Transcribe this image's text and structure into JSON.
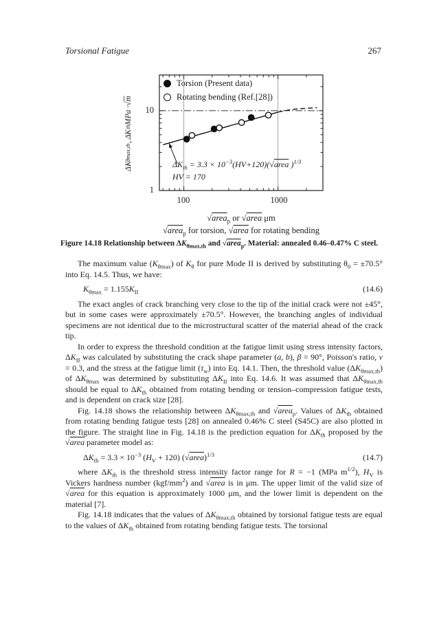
{
  "colors": {
    "text": "#1c1c1c",
    "grid": "#999999",
    "line": "#111111",
    "background": "#ffffff"
  },
  "header": {
    "running_title": "Torsional Fatigue",
    "page_number": "267"
  },
  "chart_data": {
    "type": "scatter",
    "title": "",
    "xlabel": "√area_p or √area (μm)",
    "ylabel": "ΔK_θmax,th, ΔK_th MPa·√m",
    "xscale": "log",
    "yscale": "log",
    "xlim": [
      55,
      3000
    ],
    "ylim": [
      1,
      28
    ],
    "xtick_labels": [
      "100",
      "1000"
    ],
    "ytick_labels": [
      "10",
      "1"
    ],
    "grid_x": [
      100,
      1000
    ],
    "gridline_dashdot_y": 10,
    "legend_position": "top-left",
    "series": [
      {
        "name": "Torsion  (Present data)",
        "marker": "filled-circle",
        "points": [
          [
            107,
            4.4
          ],
          [
            210,
            5.9
          ],
          [
            520,
            8.2
          ]
        ]
      },
      {
        "name": "Rotating bending  (Ref.[28])",
        "marker": "open-circle",
        "points": [
          [
            122,
            4.9
          ],
          [
            238,
            6.1
          ],
          [
            410,
            7.1
          ],
          [
            790,
            8.8
          ]
        ]
      }
    ],
    "prediction_line": {
      "label": "ΔKth = 3.3 × 10⁻³(HV+120)(√area)^1/3",
      "hv_label": "HV = 170",
      "coef": 0.0033,
      "hv": 170,
      "offset": 120,
      "power": 0.3333,
      "solid_x_range": [
        60,
        1000
      ],
      "dashed_points": [
        [
          1000,
          9.6
        ],
        [
          1300,
          10.2
        ],
        [
          1700,
          10.6
        ],
        [
          2600,
          10.9
        ]
      ]
    }
  },
  "figure": {
    "ylabel_fmt": "Δ*K*_{θmax,th}, Δ*K*_{th} MPa · √{m}",
    "annotation_line1": "Δ*K*_{th} = 3.3 × 10^{−3}(*HV*+120)(√{*area*} )^{1/3}",
    "annotation_line2": "*HV* = 170",
    "xaxis_line1": "√{*area*}_{p}  or  √{*area*}  μm",
    "xaxis_line2": "√{*area*}_{p}  for torsion, √{*area*}  for rotating bending",
    "caption": "Figure 14.18  Relationship between Δ*K*_{θmax,th} and √{*area*}_{p}. Material: annealed 0.46–0.47% C steel."
  },
  "body": {
    "paragraphs": [
      "The maximum value (*K*_{θmax}) of *K*_{θ} for pure Mode II is derived by substituting θ_{0} = ±70.5° into Eq. 14.5. Thus, we have:",
      "The exact angles of crack branching very close to the tip of the initial crack were not ±45°, but in some cases were approximately ±70.5°. However, the branching angles of individual specimens are not identical due to the microstructural scatter of the material ahead of the crack tip.",
      "In order to express the threshold condition at the fatigue limit using stress intensity factors, Δ*K*_{II} was calculated by substituting the crack shape parameter (*a*, *b*), *β* = 90°, Poisson's ratio, *ν* = 0.3, and the stress at the fatigue limit (*τ*_{w}) into Eq. 14.1. Then, the threshold value (Δ*K*_{θmax,th}) of Δ*K*_{θmax} was determined by substituting Δ*K*_{II} into Eq. 14.6. It was assumed that Δ*K*_{θmax,th} should be equal to Δ*K*_{th} obtained from rotating bending or tension–compression fatigue tests, and is dependent on crack size [28].",
      "Fig. 14.18 shows the relationship between Δ*K*_{θmax,th} and √{*area*}_{p}. Values of Δ*K*_{th} obtained from rotating bending fatigue tests [28] on annealed 0.46% C steel (S45C) are also plotted in the figure. The straight line in Fig. 14.18 is the prediction equation for Δ*K*_{th} proposed by the √{*area*} parameter model as:",
      "where Δ*K*_{th} is the threshold stress intensity factor range for *R* = −1 (MPa m^{1/2}), *H*_{V} is Vickers hardness number (kgf/mm^{2}) and √{*area*} is in μm. The upper limit of the valid size of √{*area*} for this equation is approximately 1000 μm, and the lower limit is dependent on the material [7].",
      "Fig. 14.18 indicates that the values of Δ*K*_{θmax,th} obtained by torsional fatigue tests are equal to the values of Δ*K*_{th} obtained from rotating bending fatigue tests. The torsional"
    ],
    "equations": [
      {
        "expr": "*K*_{θmax} = 1.155*K*_{II}",
        "number": "(14.6)"
      },
      {
        "expr": "Δ*K*_{th} = 3.3 × 10^{−3} (*H*_{V} + 120) (√{*area*})^{1/3}",
        "number": "(14.7)"
      }
    ]
  }
}
